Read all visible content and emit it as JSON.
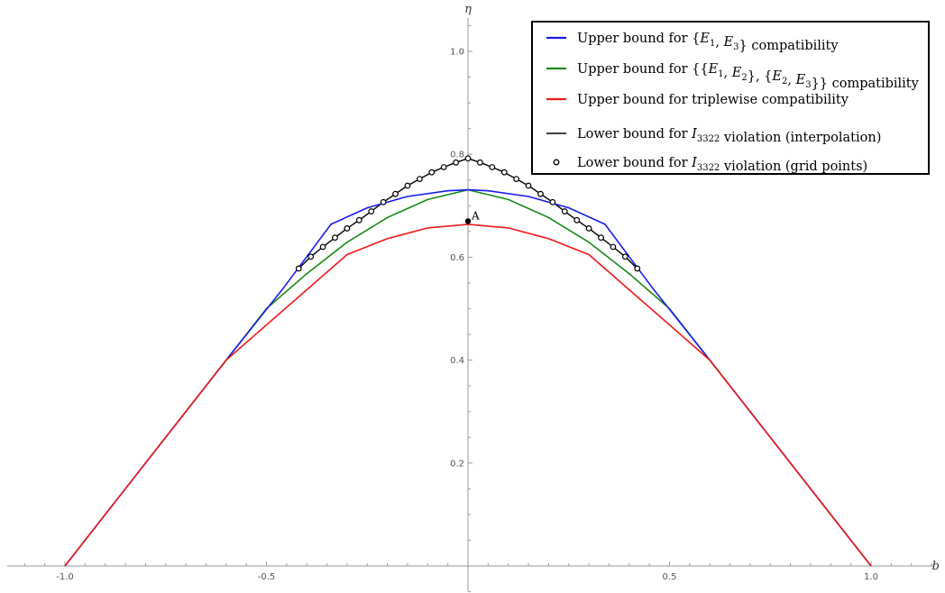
{
  "chart_data": {
    "type": "line",
    "title": "",
    "xlabel": "b",
    "ylabel": "η",
    "xlim": [
      -1.1,
      1.18
    ],
    "ylim": [
      -0.07,
      1.05
    ],
    "x_ticks": [
      -1.0,
      -0.5,
      0.5,
      1.0
    ],
    "x_tick_labels": [
      "-1.0",
      "-0.5",
      "0.5",
      "1.0"
    ],
    "y_ticks": [
      0.2,
      0.4,
      0.6,
      0.8,
      1.0
    ],
    "y_tick_labels": [
      "0.2",
      "0.4",
      "0.6",
      "0.8",
      "1.0"
    ],
    "grid": false,
    "legend_position": "top-right",
    "series": [
      {
        "name": "Upper bound for {E1, E3} compatibility",
        "legend_html": "Upper bound for {<tspan font-style=\"italic\">E</tspan><tspan font-size=\"10\" dy=\"4\">1</tspan><tspan dy=\"-4\">, </tspan><tspan font-style=\"italic\">E</tspan><tspan font-size=\"10\" dy=\"4\">3</tspan><tspan dy=\"-4\">} compatibility</tspan>",
        "color": "#1a1aee",
        "style": "line",
        "x": [
          -1.0,
          -0.6,
          -0.46,
          -0.34,
          -0.25,
          -0.15,
          -0.05,
          0.0,
          0.05,
          0.15,
          0.25,
          0.34,
          0.46,
          0.6,
          1.0
        ],
        "y": [
          0.0,
          0.4,
          0.538,
          0.664,
          0.696,
          0.718,
          0.729,
          0.731,
          0.729,
          0.718,
          0.696,
          0.664,
          0.538,
          0.4,
          0.0
        ]
      },
      {
        "name": "Upper bound for {{E1, E2}, {E2, E3}} compatibility",
        "color": "#1a8a1a",
        "style": "line",
        "x": [
          -1.0,
          -0.6,
          -0.5,
          -0.4,
          -0.3,
          -0.2,
          -0.1,
          0.0,
          0.1,
          0.2,
          0.3,
          0.4,
          0.5,
          0.6,
          1.0
        ],
        "y": [
          0.0,
          0.4,
          0.5,
          0.568,
          0.629,
          0.677,
          0.712,
          0.731,
          0.712,
          0.677,
          0.629,
          0.568,
          0.5,
          0.4,
          0.0
        ]
      },
      {
        "name": "Upper bound for triplewise compatibility",
        "color": "#ee1a1a",
        "style": "line",
        "x": [
          -1.0,
          -0.6,
          -0.3,
          -0.2,
          -0.1,
          0.0,
          0.1,
          0.2,
          0.3,
          0.6,
          1.0
        ],
        "y": [
          0.0,
          0.4,
          0.605,
          0.636,
          0.657,
          0.664,
          0.657,
          0.636,
          0.605,
          0.4,
          0.0
        ]
      },
      {
        "name": "Lower bound for I3322 violation (interpolation)",
        "color": "#000000",
        "style": "line",
        "x": [
          -0.42,
          -0.39,
          -0.36,
          -0.33,
          -0.3,
          -0.27,
          -0.24,
          -0.21,
          -0.18,
          -0.15,
          -0.12,
          -0.09,
          -0.06,
          -0.03,
          0.0,
          0.03,
          0.06,
          0.09,
          0.12,
          0.15,
          0.18,
          0.21,
          0.24,
          0.27,
          0.3,
          0.33,
          0.36,
          0.39,
          0.42
        ],
        "y": [
          0.578,
          0.601,
          0.62,
          0.638,
          0.656,
          0.672,
          0.689,
          0.707,
          0.723,
          0.739,
          0.752,
          0.765,
          0.775,
          0.784,
          0.792,
          0.784,
          0.775,
          0.765,
          0.752,
          0.739,
          0.723,
          0.707,
          0.689,
          0.672,
          0.656,
          0.638,
          0.62,
          0.601,
          0.578
        ]
      },
      {
        "name": "Lower bound for I3322 violation (grid points)",
        "color": "#000000",
        "style": "markers",
        "x": [
          -0.42,
          -0.39,
          -0.36,
          -0.33,
          -0.3,
          -0.27,
          -0.24,
          -0.21,
          -0.18,
          -0.15,
          -0.12,
          -0.09,
          -0.06,
          -0.03,
          0.0,
          0.03,
          0.06,
          0.09,
          0.12,
          0.15,
          0.18,
          0.21,
          0.24,
          0.27,
          0.3,
          0.33,
          0.36,
          0.39,
          0.42
        ],
        "y": [
          0.578,
          0.601,
          0.62,
          0.638,
          0.656,
          0.672,
          0.689,
          0.707,
          0.723,
          0.739,
          0.752,
          0.765,
          0.775,
          0.784,
          0.792,
          0.784,
          0.775,
          0.765,
          0.752,
          0.739,
          0.723,
          0.707,
          0.689,
          0.672,
          0.656,
          0.638,
          0.62,
          0.601,
          0.578
        ]
      }
    ],
    "annotations": [
      {
        "label": "A",
        "x": 0.0,
        "y": 0.67
      }
    ]
  }
}
